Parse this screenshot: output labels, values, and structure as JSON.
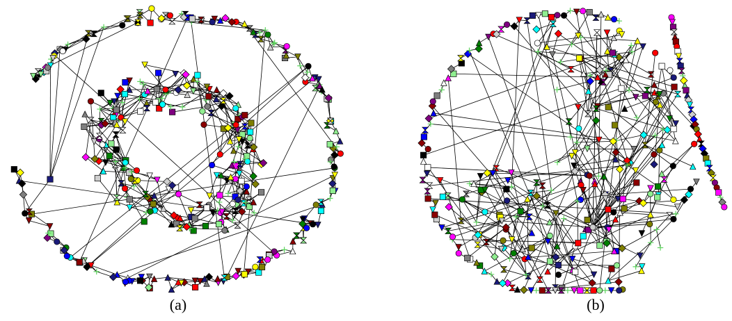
{
  "figure": {
    "panels": [
      {
        "caption": "(a)"
      },
      {
        "caption": "(b)"
      }
    ]
  },
  "colors": {
    "edge": "#000000",
    "node_palette": [
      "#ff0000",
      "#1a1a7a",
      "#8b0000",
      "#7f7f7f",
      "#cfcfcf",
      "#ffff00",
      "#008000",
      "#0000ff",
      "#ff00ff",
      "#7f7f00",
      "#00ffff",
      "#ffffff",
      "#000000",
      "#7f0080",
      "#90ee90"
    ]
  },
  "node_shapes": [
    "square",
    "circle",
    "triangle",
    "diamond",
    "hourglass",
    "down-triangle",
    "plus"
  ]
}
